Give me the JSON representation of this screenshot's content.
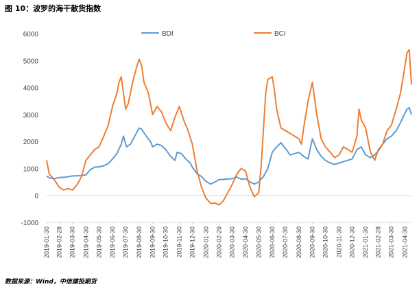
{
  "title": "图 10：波罗的海干散货指数",
  "source": "数据来源：Wind，中信建投期货",
  "colors": {
    "BDI": "#5B9BD5",
    "BCI": "#ED7D31",
    "axis": "#D9D9D9",
    "text": "#404040"
  },
  "chart_data": {
    "type": "line",
    "ylim": [
      -1000,
      6000
    ],
    "yticks": [
      -1000,
      0,
      1000,
      2000,
      3000,
      4000,
      5000,
      6000
    ],
    "xlim": [
      "2019-01-30",
      "2021-05-15"
    ],
    "xticks": [
      "2019-01-30",
      "2019-02-28",
      "2019-03-30",
      "2019-04-30",
      "2019-05-30",
      "2019-06-30",
      "2019-07-30",
      "2019-08-30",
      "2019-09-30",
      "2019-10-30",
      "2019-11-30",
      "2019-12-30",
      "2020-01-30",
      "2020-02-29",
      "2020-03-30",
      "2020-04-30",
      "2020-05-30",
      "2020-06-30",
      "2020-07-30",
      "2020-08-30",
      "2020-09-30",
      "2020-10-30",
      "2020-11-30",
      "2020-12-30",
      "2021-01-30",
      "2021-02-28",
      "2021-03-30",
      "2021-04-30"
    ],
    "legend_position": "top",
    "grid": false,
    "series": [
      {
        "name": "BDI",
        "points": [
          [
            "2019-01-30",
            720
          ],
          [
            "2019-02-05",
            650
          ],
          [
            "2019-02-15",
            620
          ],
          [
            "2019-02-28",
            660
          ],
          [
            "2019-03-15",
            680
          ],
          [
            "2019-03-30",
            720
          ],
          [
            "2019-04-15",
            730
          ],
          [
            "2019-04-30",
            760
          ],
          [
            "2019-05-10",
            950
          ],
          [
            "2019-05-20",
            1050
          ],
          [
            "2019-05-30",
            1060
          ],
          [
            "2019-06-10",
            1100
          ],
          [
            "2019-06-20",
            1180
          ],
          [
            "2019-06-30",
            1350
          ],
          [
            "2019-07-10",
            1550
          ],
          [
            "2019-07-20",
            1900
          ],
          [
            "2019-07-25",
            2200
          ],
          [
            "2019-08-01",
            1800
          ],
          [
            "2019-08-10",
            1900
          ],
          [
            "2019-08-20",
            2200
          ],
          [
            "2019-08-30",
            2500
          ],
          [
            "2019-09-05",
            2450
          ],
          [
            "2019-09-15",
            2200
          ],
          [
            "2019-09-25",
            2000
          ],
          [
            "2019-09-30",
            1800
          ],
          [
            "2019-10-10",
            1900
          ],
          [
            "2019-10-20",
            1850
          ],
          [
            "2019-10-30",
            1700
          ],
          [
            "2019-11-10",
            1450
          ],
          [
            "2019-11-20",
            1300
          ],
          [
            "2019-11-25",
            1600
          ],
          [
            "2019-12-05",
            1550
          ],
          [
            "2019-12-15",
            1350
          ],
          [
            "2019-12-25",
            1200
          ],
          [
            "2019-12-30",
            1050
          ],
          [
            "2020-01-10",
            800
          ],
          [
            "2020-01-20",
            700
          ],
          [
            "2020-01-30",
            520
          ],
          [
            "2020-02-10",
            420
          ],
          [
            "2020-02-20",
            500
          ],
          [
            "2020-02-29",
            580
          ],
          [
            "2020-03-15",
            600
          ],
          [
            "2020-03-30",
            620
          ],
          [
            "2020-04-10",
            680
          ],
          [
            "2020-04-20",
            600
          ],
          [
            "2020-04-30",
            620
          ],
          [
            "2020-05-10",
            500
          ],
          [
            "2020-05-20",
            420
          ],
          [
            "2020-05-30",
            500
          ],
          [
            "2020-06-10",
            700
          ],
          [
            "2020-06-20",
            1000
          ],
          [
            "2020-06-30",
            1600
          ],
          [
            "2020-07-10",
            1800
          ],
          [
            "2020-07-20",
            1950
          ],
          [
            "2020-07-30",
            1750
          ],
          [
            "2020-08-10",
            1500
          ],
          [
            "2020-08-20",
            1550
          ],
          [
            "2020-08-30",
            1600
          ],
          [
            "2020-09-10",
            1450
          ],
          [
            "2020-09-20",
            1350
          ],
          [
            "2020-09-30",
            2100
          ],
          [
            "2020-10-10",
            1700
          ],
          [
            "2020-10-20",
            1450
          ],
          [
            "2020-10-30",
            1300
          ],
          [
            "2020-11-10",
            1200
          ],
          [
            "2020-11-20",
            1150
          ],
          [
            "2020-11-30",
            1200
          ],
          [
            "2020-12-10",
            1250
          ],
          [
            "2020-12-20",
            1300
          ],
          [
            "2020-12-30",
            1350
          ],
          [
            "2021-01-10",
            1700
          ],
          [
            "2021-01-20",
            1800
          ],
          [
            "2021-01-30",
            1500
          ],
          [
            "2021-02-10",
            1400
          ],
          [
            "2021-02-20",
            1500
          ],
          [
            "2021-02-28",
            1650
          ],
          [
            "2021-03-10",
            1900
          ],
          [
            "2021-03-20",
            2100
          ],
          [
            "2021-03-30",
            2200
          ],
          [
            "2021-04-10",
            2400
          ],
          [
            "2021-04-20",
            2700
          ],
          [
            "2021-04-30",
            3050
          ],
          [
            "2021-05-05",
            3200
          ],
          [
            "2021-05-10",
            3250
          ],
          [
            "2021-05-15",
            3000
          ]
        ]
      },
      {
        "name": "BCI",
        "points": [
          [
            "2019-01-30",
            1300
          ],
          [
            "2019-02-05",
            800
          ],
          [
            "2019-02-15",
            620
          ],
          [
            "2019-02-28",
            300
          ],
          [
            "2019-03-10",
            200
          ],
          [
            "2019-03-20",
            260
          ],
          [
            "2019-03-30",
            200
          ],
          [
            "2019-04-10",
            400
          ],
          [
            "2019-04-20",
            700
          ],
          [
            "2019-04-30",
            1300
          ],
          [
            "2019-05-10",
            1500
          ],
          [
            "2019-05-20",
            1700
          ],
          [
            "2019-05-30",
            1800
          ],
          [
            "2019-06-10",
            2200
          ],
          [
            "2019-06-20",
            2600
          ],
          [
            "2019-06-30",
            3300
          ],
          [
            "2019-07-10",
            3800
          ],
          [
            "2019-07-15",
            4200
          ],
          [
            "2019-07-20",
            4400
          ],
          [
            "2019-07-30",
            3200
          ],
          [
            "2019-08-05",
            3400
          ],
          [
            "2019-08-15",
            4200
          ],
          [
            "2019-08-25",
            4800
          ],
          [
            "2019-08-30",
            5050
          ],
          [
            "2019-09-05",
            4800
          ],
          [
            "2019-09-10",
            4200
          ],
          [
            "2019-09-20",
            3800
          ],
          [
            "2019-09-30",
            3000
          ],
          [
            "2019-10-10",
            3300
          ],
          [
            "2019-10-20",
            3100
          ],
          [
            "2019-10-30",
            2700
          ],
          [
            "2019-11-10",
            2400
          ],
          [
            "2019-11-20",
            2900
          ],
          [
            "2019-11-30",
            3300
          ],
          [
            "2019-12-10",
            2800
          ],
          [
            "2019-12-20",
            2400
          ],
          [
            "2019-12-30",
            1900
          ],
          [
            "2020-01-10",
            900
          ],
          [
            "2020-01-20",
            300
          ],
          [
            "2020-01-30",
            -100
          ],
          [
            "2020-02-10",
            -300
          ],
          [
            "2020-02-20",
            -280
          ],
          [
            "2020-02-29",
            -350
          ],
          [
            "2020-03-10",
            -200
          ],
          [
            "2020-03-20",
            100
          ],
          [
            "2020-03-30",
            400
          ],
          [
            "2020-04-10",
            800
          ],
          [
            "2020-04-20",
            1000
          ],
          [
            "2020-04-30",
            900
          ],
          [
            "2020-05-10",
            300
          ],
          [
            "2020-05-20",
            -50
          ],
          [
            "2020-05-30",
            100
          ],
          [
            "2020-06-05",
            1200
          ],
          [
            "2020-06-10",
            2500
          ],
          [
            "2020-06-15",
            3800
          ],
          [
            "2020-06-20",
            4300
          ],
          [
            "2020-06-30",
            4400
          ],
          [
            "2020-07-05",
            3900
          ],
          [
            "2020-07-10",
            3200
          ],
          [
            "2020-07-20",
            2500
          ],
          [
            "2020-07-30",
            2400
          ],
          [
            "2020-08-10",
            2300
          ],
          [
            "2020-08-20",
            2200
          ],
          [
            "2020-08-30",
            2100
          ],
          [
            "2020-09-05",
            1900
          ],
          [
            "2020-09-10",
            2500
          ],
          [
            "2020-09-20",
            3500
          ],
          [
            "2020-09-30",
            4200
          ],
          [
            "2020-10-10",
            3000
          ],
          [
            "2020-10-20",
            2100
          ],
          [
            "2020-10-30",
            1800
          ],
          [
            "2020-11-10",
            1600
          ],
          [
            "2020-11-20",
            1400
          ],
          [
            "2020-11-30",
            1500
          ],
          [
            "2020-12-10",
            1800
          ],
          [
            "2020-12-20",
            1700
          ],
          [
            "2020-12-30",
            1600
          ],
          [
            "2021-01-10",
            2200
          ],
          [
            "2021-01-15",
            3200
          ],
          [
            "2021-01-20",
            2800
          ],
          [
            "2021-01-30",
            2500
          ],
          [
            "2021-02-10",
            1600
          ],
          [
            "2021-02-20",
            1300
          ],
          [
            "2021-02-28",
            1700
          ],
          [
            "2021-03-10",
            1900
          ],
          [
            "2021-03-20",
            2400
          ],
          [
            "2021-03-30",
            2600
          ],
          [
            "2021-04-10",
            3200
          ],
          [
            "2021-04-20",
            3800
          ],
          [
            "2021-04-30",
            4800
          ],
          [
            "2021-05-05",
            5300
          ],
          [
            "2021-05-10",
            5400
          ],
          [
            "2021-05-15",
            4100
          ]
        ]
      }
    ]
  }
}
